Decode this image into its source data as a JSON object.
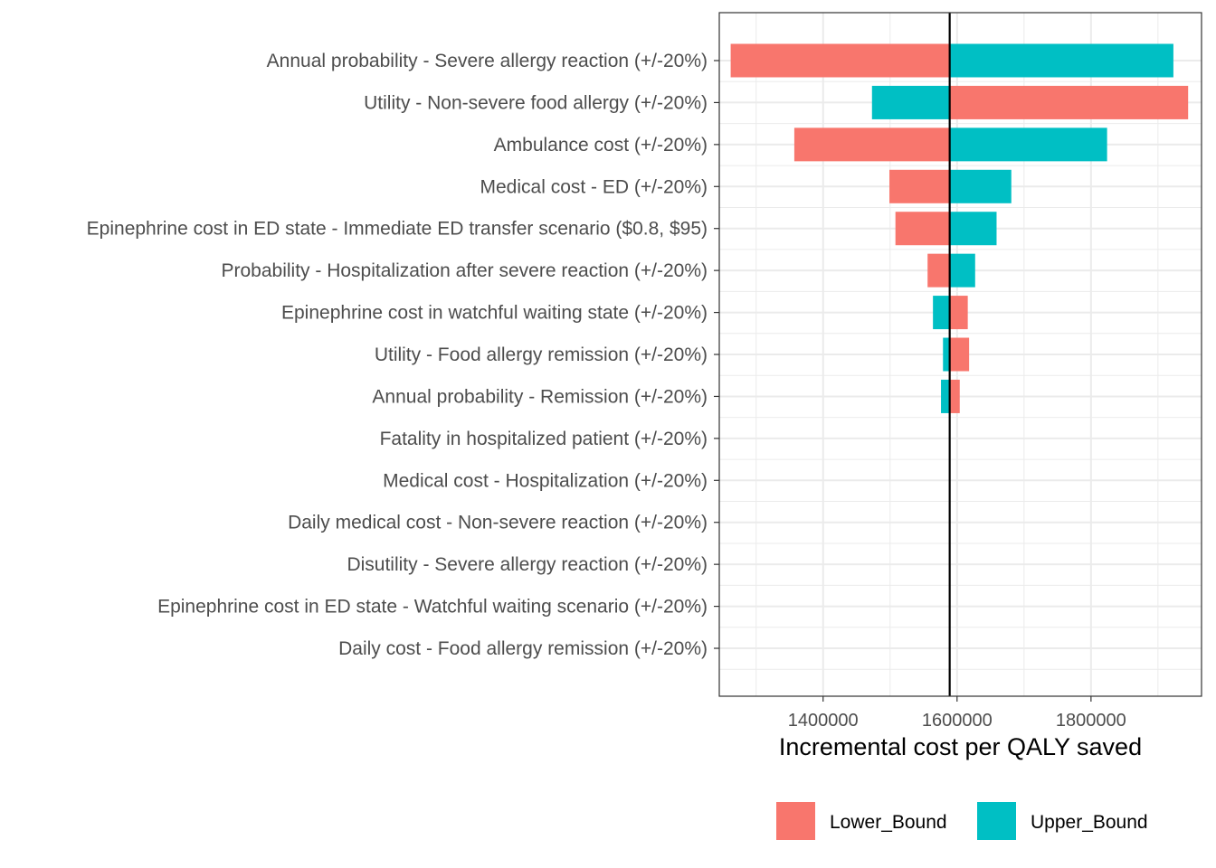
{
  "chart_data": {
    "type": "bar",
    "subtype": "tornado",
    "title": "",
    "xlabel": "Incremental cost per QALY saved",
    "ylabel": "",
    "xlim": [
      1245000,
      1965000
    ],
    "x_ticks": [
      1400000,
      1600000,
      1800000
    ],
    "x_tick_labels": [
      "1400000",
      "1600000",
      "1800000"
    ],
    "baseline": 1589000,
    "grid": true,
    "legend_position": "bottom",
    "colors": {
      "Lower_Bound": "#F8766D",
      "Upper_Bound": "#00BFC4",
      "baseline": "#000000"
    },
    "legend": [
      {
        "name": "Lower_Bound",
        "color": "#F8766D"
      },
      {
        "name": "Upper_Bound",
        "color": "#00BFC4"
      }
    ],
    "categories": [
      "Annual probability - Severe allergy reaction (+/-20%)",
      "Utility - Non-severe food allergy (+/-20%)",
      "Ambulance cost (+/-20%)",
      "Medical cost - ED (+/-20%)",
      "Epinephrine cost in ED state - Immediate ED transfer scenario ($0.8, $95)",
      "Probability - Hospitalization after severe reaction (+/-20%)",
      "Epinephrine cost in watchful waiting state (+/-20%)",
      "Utility - Food allergy remission (+/-20%)",
      "Annual probability - Remission (+/-20%)",
      "Fatality in hospitalized patient (+/-20%)",
      "Medical cost - Hospitalization (+/-20%)",
      "Daily medical cost - Non-severe reaction (+/-20%)",
      "Disutility - Severe allergy reaction (+/-20%)",
      "Epinephrine cost in ED state - Watchful waiting scenario (+/-20%)",
      "Daily cost - Food allergy remission (+/-20%)"
    ],
    "series": [
      {
        "name": "Lower_Bound",
        "values": [
          1262000,
          1945000,
          1357000,
          1499000,
          1508000,
          1556000,
          1616000,
          1618000,
          1604000,
          1589000,
          1589000,
          1589000,
          1589000,
          1589000,
          1589000
        ]
      },
      {
        "name": "Upper_Bound",
        "values": [
          1923000,
          1473000,
          1824000,
          1681000,
          1659000,
          1627000,
          1564000,
          1579000,
          1576000,
          1589000,
          1589000,
          1589000,
          1589000,
          1589000,
          1589000
        ]
      }
    ]
  }
}
